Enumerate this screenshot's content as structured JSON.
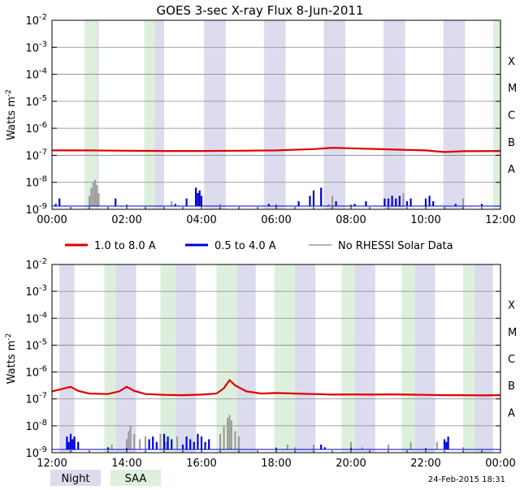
{
  "title": "GOES 3-sec X-ray Flux     8-Jun-2011",
  "footer_date": "24-Feb-2015 18:31",
  "colors": {
    "long_channel": "#e00000",
    "short_channel": "#0000e0",
    "no_rhessi": "#999999",
    "night": "#dcdcee",
    "saa": "#ddf0dd",
    "grid": "#888888",
    "axis": "#000000"
  },
  "legend": {
    "long_label": "1.0 to 8.0 A",
    "short_label": "0.5 to 4.0 A",
    "norhessi_label": "No RHESSI Solar Data",
    "night_label": "Night",
    "saa_label": "SAA"
  },
  "chart_data": [
    {
      "type": "line",
      "title": "GOES 3-sec X-ray Flux     8-Jun-2011",
      "ylabel": "Watts m^-2",
      "yscale": "log",
      "ylim_exp": [
        -9,
        -2
      ],
      "ytick_exponents": [
        -9,
        -8,
        -7,
        -6,
        -5,
        -4,
        -3,
        -2
      ],
      "flare_classes": [
        {
          "label": "A",
          "exp": -8
        },
        {
          "label": "B",
          "exp": -7
        },
        {
          "label": "C",
          "exp": -6
        },
        {
          "label": "M",
          "exp": -5
        },
        {
          "label": "X",
          "exp": -4
        }
      ],
      "xlim_hours": [
        0,
        12
      ],
      "xtick_labels": [
        "00:00",
        "02:00",
        "04:00",
        "06:00",
        "08:00",
        "10:00",
        "12:00"
      ],
      "night_intervals": [
        [
          0.87,
          1.25
        ],
        [
          2.47,
          3.0
        ],
        [
          4.07,
          4.65
        ],
        [
          5.67,
          6.25
        ],
        [
          7.27,
          7.85
        ],
        [
          8.87,
          9.45
        ],
        [
          10.47,
          11.05
        ]
      ],
      "saa_intervals": [
        [
          0.87,
          1.2
        ],
        [
          2.47,
          2.75
        ],
        [
          11.8,
          12.0
        ]
      ],
      "long_channel": [
        [
          0.0,
          -6.82
        ],
        [
          1.0,
          -6.82
        ],
        [
          2.0,
          -6.83
        ],
        [
          3.0,
          -6.84
        ],
        [
          4.0,
          -6.84
        ],
        [
          5.0,
          -6.83
        ],
        [
          6.0,
          -6.82
        ],
        [
          7.0,
          -6.77
        ],
        [
          7.5,
          -6.72
        ],
        [
          8.0,
          -6.74
        ],
        [
          9.0,
          -6.78
        ],
        [
          10.0,
          -6.82
        ],
        [
          10.5,
          -6.88
        ],
        [
          11.0,
          -6.85
        ],
        [
          12.0,
          -6.84
        ]
      ],
      "short_bursts": [
        [
          0.1,
          -8.8
        ],
        [
          0.2,
          -8.6
        ],
        [
          0.35,
          -8.9
        ],
        [
          1.7,
          -8.6
        ],
        [
          1.85,
          -8.9
        ],
        [
          3.3,
          -8.8
        ],
        [
          3.4,
          -8.9
        ],
        [
          3.6,
          -8.6
        ],
        [
          3.85,
          -8.2
        ],
        [
          3.9,
          -8.4
        ],
        [
          3.95,
          -8.3
        ],
        [
          4.0,
          -8.5
        ],
        [
          5.8,
          -8.8
        ],
        [
          6.6,
          -8.7
        ],
        [
          6.9,
          -8.5
        ],
        [
          7.0,
          -8.3
        ],
        [
          7.2,
          -8.2
        ],
        [
          7.6,
          -8.7
        ],
        [
          8.1,
          -8.8
        ],
        [
          8.4,
          -8.7
        ],
        [
          8.9,
          -8.6
        ],
        [
          9.0,
          -8.6
        ],
        [
          9.1,
          -8.5
        ],
        [
          9.2,
          -8.6
        ],
        [
          9.3,
          -8.5
        ],
        [
          9.5,
          -8.7
        ],
        [
          9.6,
          -8.6
        ],
        [
          10.0,
          -8.6
        ],
        [
          10.1,
          -8.5
        ],
        [
          10.2,
          -8.7
        ],
        [
          10.8,
          -8.8
        ],
        [
          11.2,
          -8.9
        ],
        [
          11.5,
          -8.8
        ]
      ],
      "norhessi_bursts": [
        [
          1.0,
          -8.5
        ],
        [
          1.05,
          -8.2
        ],
        [
          1.1,
          -8.0
        ],
        [
          1.15,
          -7.9
        ],
        [
          1.2,
          -8.1
        ],
        [
          1.25,
          -8.4
        ],
        [
          2.9,
          -8.9
        ],
        [
          3.2,
          -8.7
        ],
        [
          4.5,
          -8.8
        ],
        [
          5.0,
          -8.9
        ],
        [
          7.4,
          -8.8
        ],
        [
          7.5,
          -8.5
        ],
        [
          8.8,
          -8.9
        ],
        [
          9.2,
          -8.8
        ],
        [
          9.4,
          -8.4
        ],
        [
          11.0,
          -8.6
        ]
      ]
    },
    {
      "type": "line",
      "ylabel": "Watts m^-2",
      "yscale": "log",
      "ylim_exp": [
        -9,
        -2
      ],
      "ytick_exponents": [
        -9,
        -8,
        -7,
        -6,
        -5,
        -4,
        -3,
        -2
      ],
      "flare_classes": [
        {
          "label": "A",
          "exp": -8
        },
        {
          "label": "B",
          "exp": -7
        },
        {
          "label": "C",
          "exp": -6
        },
        {
          "label": "M",
          "exp": -5
        },
        {
          "label": "X",
          "exp": -4
        }
      ],
      "xlim_hours": [
        12,
        24
      ],
      "xtick_labels": [
        "12:00",
        "14:00",
        "16:00",
        "18:00",
        "20:00",
        "22:00",
        "00:00"
      ],
      "night_intervals": [
        [
          12.2,
          12.6
        ],
        [
          13.7,
          14.25
        ],
        [
          15.3,
          15.85
        ],
        [
          16.9,
          17.45
        ],
        [
          18.5,
          19.05
        ],
        [
          20.1,
          20.65
        ],
        [
          21.7,
          22.25
        ],
        [
          23.3,
          23.8
        ]
      ],
      "saa_intervals": [
        [
          13.4,
          13.7
        ],
        [
          14.9,
          15.3
        ],
        [
          16.4,
          16.95
        ],
        [
          17.95,
          18.5
        ],
        [
          19.75,
          20.1
        ],
        [
          21.35,
          21.7
        ],
        [
          23.0,
          23.3
        ]
      ],
      "long_channel": [
        [
          12.0,
          -6.72
        ],
        [
          12.3,
          -6.62
        ],
        [
          12.5,
          -6.55
        ],
        [
          12.7,
          -6.7
        ],
        [
          13.0,
          -6.8
        ],
        [
          13.5,
          -6.82
        ],
        [
          13.8,
          -6.72
        ],
        [
          14.0,
          -6.55
        ],
        [
          14.2,
          -6.7
        ],
        [
          14.5,
          -6.82
        ],
        [
          15.0,
          -6.85
        ],
        [
          15.5,
          -6.86
        ],
        [
          16.0,
          -6.84
        ],
        [
          16.4,
          -6.8
        ],
        [
          16.6,
          -6.6
        ],
        [
          16.75,
          -6.3
        ],
        [
          16.9,
          -6.5
        ],
        [
          17.2,
          -6.72
        ],
        [
          17.6,
          -6.8
        ],
        [
          18.0,
          -6.78
        ],
        [
          18.5,
          -6.8
        ],
        [
          19.0,
          -6.82
        ],
        [
          19.5,
          -6.84
        ],
        [
          20.0,
          -6.83
        ],
        [
          20.5,
          -6.84
        ],
        [
          21.0,
          -6.83
        ],
        [
          21.5,
          -6.84
        ],
        [
          22.0,
          -6.85
        ],
        [
          22.5,
          -6.86
        ],
        [
          23.0,
          -6.86
        ],
        [
          23.5,
          -6.87
        ],
        [
          24.0,
          -6.86
        ]
      ],
      "short_bursts": [
        [
          12.4,
          -8.4
        ],
        [
          12.45,
          -8.6
        ],
        [
          12.5,
          -8.3
        ],
        [
          12.55,
          -8.5
        ],
        [
          12.6,
          -8.4
        ],
        [
          12.7,
          -8.6
        ],
        [
          13.5,
          -8.8
        ],
        [
          14.6,
          -8.5
        ],
        [
          14.7,
          -8.4
        ],
        [
          14.8,
          -8.6
        ],
        [
          15.0,
          -8.3
        ],
        [
          15.1,
          -8.4
        ],
        [
          15.2,
          -8.5
        ],
        [
          15.5,
          -8.7
        ],
        [
          15.6,
          -8.4
        ],
        [
          15.7,
          -8.5
        ],
        [
          15.8,
          -8.6
        ],
        [
          15.9,
          -8.3
        ],
        [
          16.0,
          -8.4
        ],
        [
          16.1,
          -8.6
        ],
        [
          16.2,
          -8.5
        ],
        [
          19.2,
          -8.7
        ],
        [
          19.3,
          -8.8
        ],
        [
          22.5,
          -8.5
        ],
        [
          22.55,
          -8.6
        ],
        [
          22.6,
          -8.4
        ]
      ],
      "norhessi_bursts": [
        [
          13.6,
          -8.7
        ],
        [
          14.0,
          -8.5
        ],
        [
          14.05,
          -8.2
        ],
        [
          14.1,
          -8.0
        ],
        [
          14.2,
          -8.3
        ],
        [
          14.35,
          -8.5
        ],
        [
          14.5,
          -8.4
        ],
        [
          14.9,
          -8.3
        ],
        [
          15.05,
          -8.6
        ],
        [
          15.35,
          -8.4
        ],
        [
          16.5,
          -8.3
        ],
        [
          16.6,
          -8.0
        ],
        [
          16.7,
          -7.7
        ],
        [
          16.75,
          -7.6
        ],
        [
          16.8,
          -7.8
        ],
        [
          16.9,
          -8.2
        ],
        [
          17.0,
          -8.4
        ],
        [
          18.0,
          -8.8
        ],
        [
          18.3,
          -8.7
        ],
        [
          18.5,
          -8.8
        ],
        [
          19.0,
          -8.7
        ],
        [
          20.0,
          -8.6
        ],
        [
          20.3,
          -8.8
        ],
        [
          21.0,
          -8.7
        ],
        [
          21.6,
          -8.6
        ],
        [
          22.3,
          -8.6
        ],
        [
          23.0,
          -8.8
        ]
      ]
    }
  ]
}
